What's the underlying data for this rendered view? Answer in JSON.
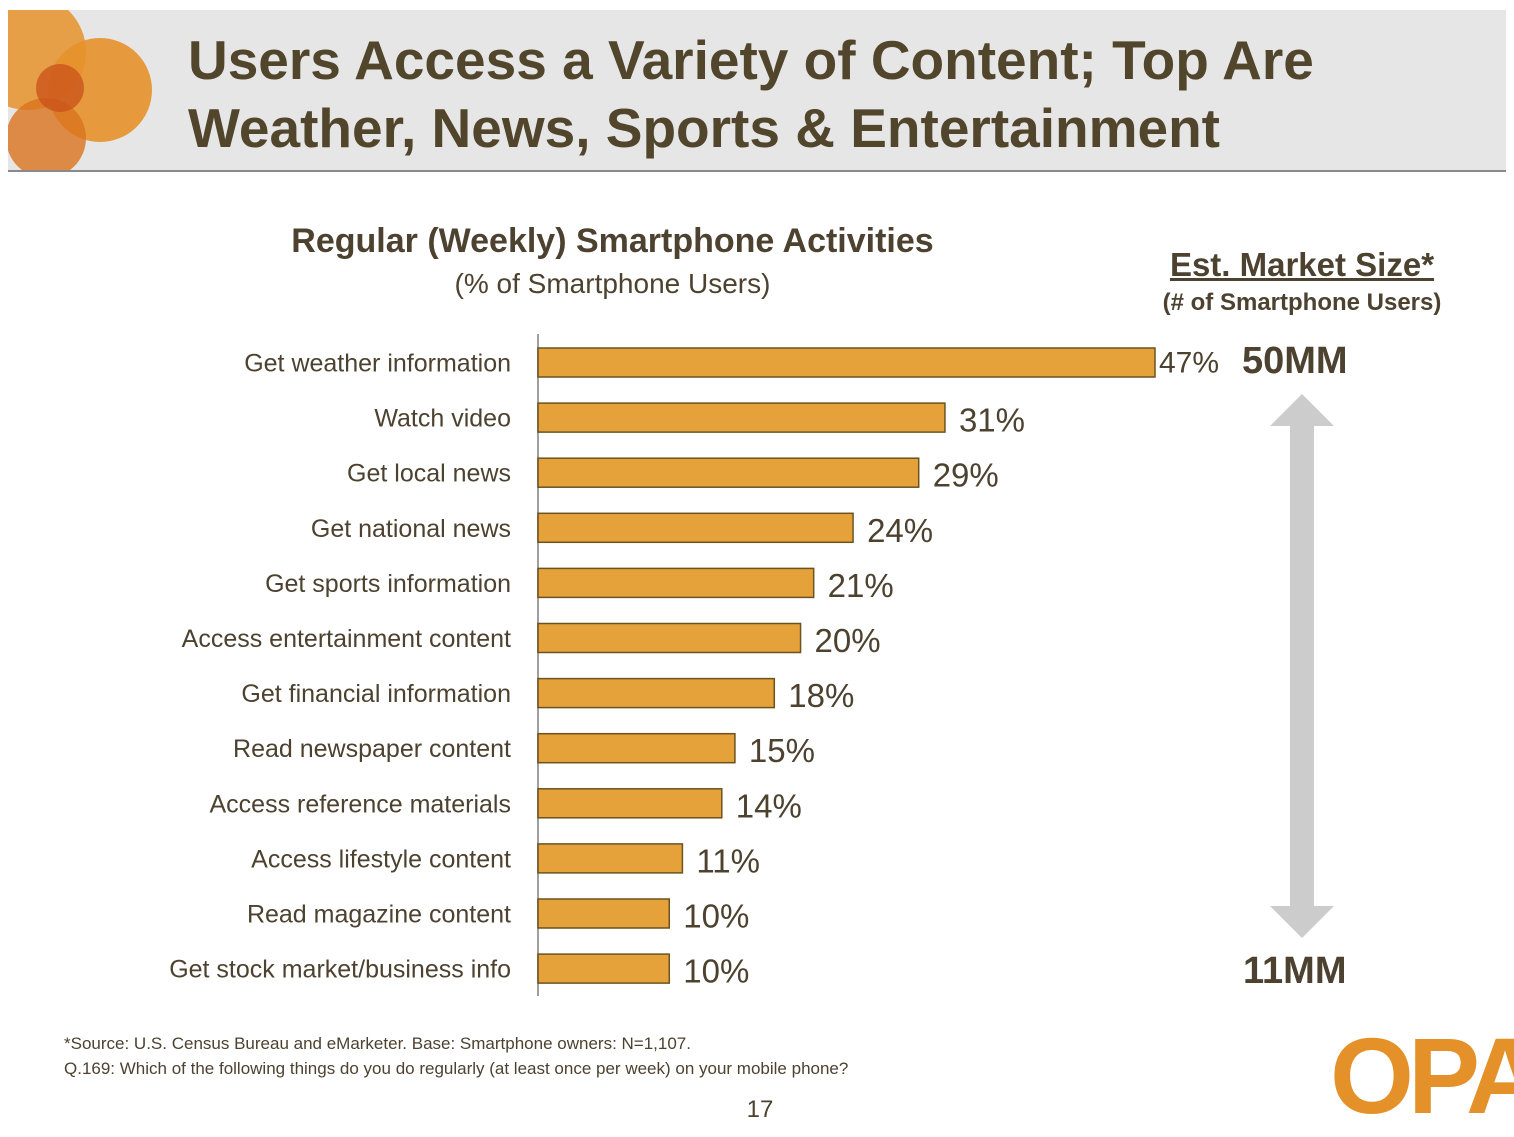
{
  "header": {
    "title": "Users Access a Variety of Content; Top Are Weather, News, Sports & Entertainment"
  },
  "colors": {
    "bar_fill": "#e5a23a",
    "bar_stroke": "#6b5320",
    "text": "#4d4130",
    "header_band": "#e6e6e6",
    "brand_orange": "#e5912a",
    "arrow": "#cccccc"
  },
  "chart_data": {
    "type": "bar",
    "orientation": "horizontal",
    "title": "Regular (Weekly) Smartphone Activities",
    "subtitle": "(% of Smartphone Users)",
    "categories": [
      "Get weather information",
      "Watch video",
      "Get local news",
      "Get national news",
      "Get sports information",
      "Access entertainment content",
      "Get financial information",
      "Read newspaper content",
      "Access reference materials",
      "Access lifestyle content",
      "Read magazine content",
      "Get stock market/business info"
    ],
    "values": [
      47,
      31,
      29,
      24,
      21,
      20,
      18,
      15,
      14,
      11,
      10,
      10
    ],
    "value_labels": [
      "47%",
      "31%",
      "29%",
      "24%",
      "21%",
      "20%",
      "18%",
      "15%",
      "14%",
      "11%",
      "10%",
      "10%"
    ],
    "xlim": [
      0,
      47
    ],
    "grid": false,
    "legend": "none"
  },
  "market": {
    "title": "Est. Market Size*",
    "subtitle": "(# of Smartphone Users)",
    "top_value": "50MM",
    "bottom_value": "11MM"
  },
  "footnotes": {
    "line1": "*Source: U.S. Census Bureau and eMarketer.    Base:   Smartphone owners: N=1,107.",
    "line2": "Q.169:  Which of the following things do you do regularly (at least once per week) on your mobile phone?"
  },
  "page_number": "17",
  "logo": {
    "text": "OPA"
  }
}
